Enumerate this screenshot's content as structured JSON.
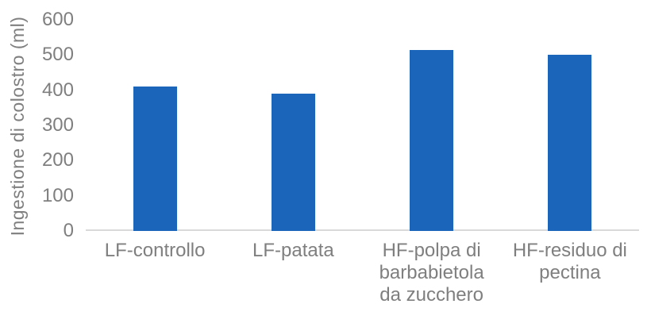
{
  "chart_data": {
    "type": "bar",
    "title": "",
    "xlabel": "",
    "ylabel": "Ingestione di colostro (ml)",
    "categories": [
      "LF-controllo",
      "LF-patata",
      "HF-polpa di barbabietola da zucchero",
      "HF-residuo di pectina"
    ],
    "values": [
      410,
      390,
      515,
      500
    ],
    "unit": "ml",
    "ylim": [
      0,
      600
    ],
    "yticks": [
      0,
      100,
      200,
      300,
      400,
      500,
      600
    ],
    "grid": false,
    "legend_position": "none",
    "colors": {
      "bar": "#1B66BB",
      "axis_line": "#D9D9D9",
      "text": "#7F7F7F",
      "background": "#FFFFFF"
    }
  }
}
